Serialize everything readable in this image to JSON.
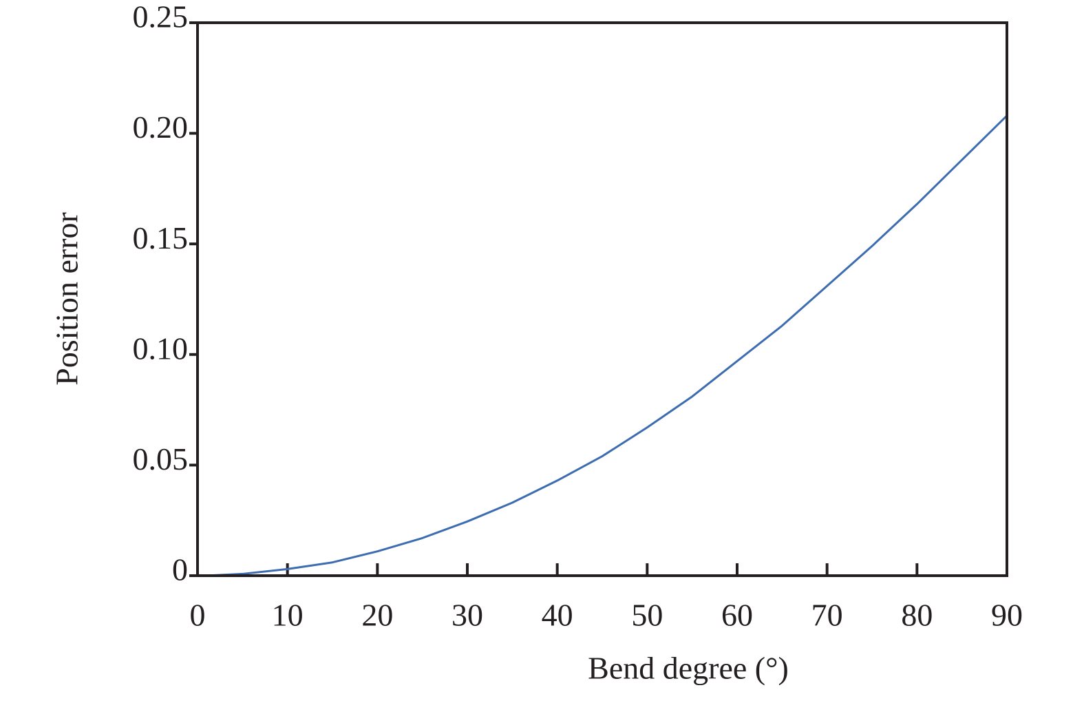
{
  "chart_data": {
    "type": "line",
    "x_label": "Bend degree (°)",
    "y_label": "Position error",
    "x": [
      1,
      5,
      10,
      15,
      20,
      25,
      30,
      35,
      40,
      45,
      50,
      55,
      60,
      65,
      70,
      75,
      80,
      85,
      90
    ],
    "values": [
      0,
      0.0008,
      0.003,
      0.006,
      0.011,
      0.017,
      0.0245,
      0.033,
      0.043,
      0.054,
      0.067,
      0.081,
      0.097,
      0.113,
      0.131,
      0.149,
      0.168,
      0.188,
      0.208
    ],
    "color": "#3d6db0",
    "xlim": [
      0,
      90
    ],
    "xticks": [
      0,
      10,
      20,
      30,
      40,
      50,
      60,
      70,
      80,
      90
    ],
    "ylim": [
      0,
      0.25
    ],
    "yticks": [
      0,
      0.05,
      {
        "value": 0.1,
        "label": "0.10"
      },
      0.15,
      {
        "value": 0.2,
        "label": "0.20"
      },
      0.25
    ]
  }
}
